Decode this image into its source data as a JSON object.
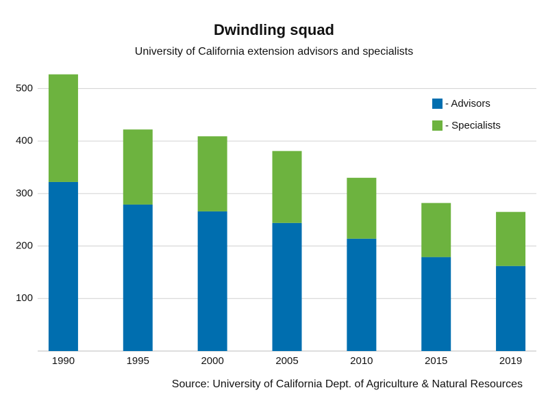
{
  "chart_data": {
    "type": "stacked_bar",
    "title": "Dwindling squad",
    "subtitle": "University of California extension advisors and specialists",
    "source": "Source: University of California Dept. of Agriculture & Natural Resources",
    "categories": [
      "1990",
      "1995",
      "2000",
      "2005",
      "2010",
      "2015",
      "2019"
    ],
    "series": [
      {
        "name": "- Advisors",
        "color": "#006eaf",
        "values": [
          322,
          279,
          266,
          244,
          214,
          179,
          162
        ]
      },
      {
        "name": "- Specialists",
        "color": "#6db33f",
        "values": [
          205,
          143,
          143,
          137,
          116,
          103,
          103
        ]
      }
    ],
    "ylim": [
      0,
      550
    ],
    "yticks": [
      100,
      200,
      300,
      400,
      500
    ],
    "grid": true,
    "legend": "upper right"
  }
}
